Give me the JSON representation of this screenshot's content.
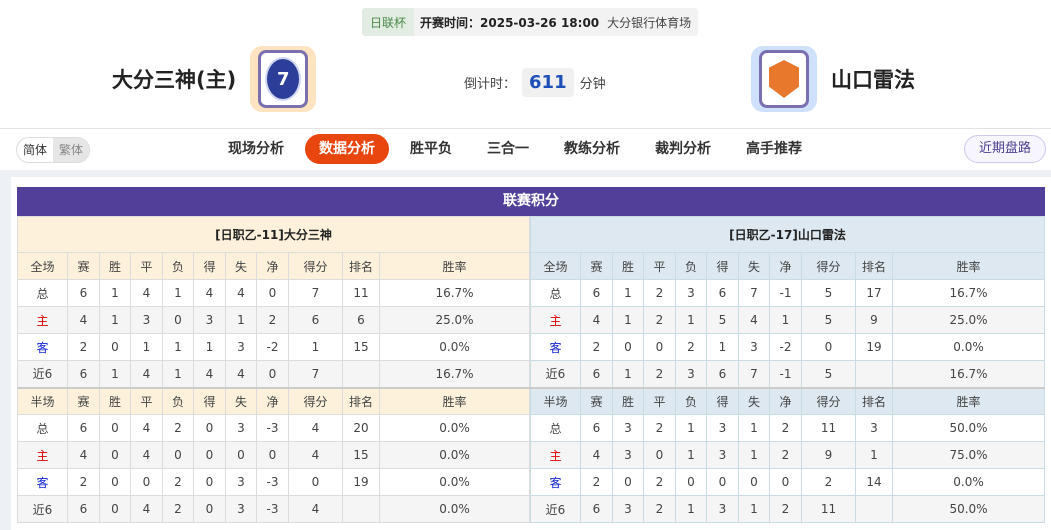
{
  "match": {
    "cup": "日联杯",
    "time": "开赛时间：2025-03-26 18:00",
    "venue": "大分银行体育场"
  },
  "home": {
    "name": "大分三神(主)",
    "logo_color": "#fde3bf"
  },
  "away": {
    "name": "山口雷法",
    "logo_color": "#cfe0fb"
  },
  "countdown": {
    "label": "倒计时：",
    "value": "611",
    "unit": "分钟"
  },
  "lang": [
    "简体",
    "繁体"
  ],
  "tabs": [
    {
      "label": "现场分析"
    },
    {
      "label": "数据分析",
      "active": true
    },
    {
      "label": "胜平负"
    },
    {
      "label": "三合一"
    },
    {
      "label": "教练分析"
    },
    {
      "label": "裁判分析"
    },
    {
      "label": "高手推荐"
    }
  ],
  "recent_button": "近期盘路",
  "section_title": "联赛积分",
  "accent": "#523f9a",
  "columns": [
    "赛",
    "胜",
    "平",
    "负",
    "得",
    "失",
    "净",
    "得分",
    "排名",
    "胜率"
  ],
  "tables": [
    {
      "title": "[日职乙-11]大分三神",
      "full": {
        "label": "全场",
        "rows": [
          [
            "总",
            "6",
            "1",
            "4",
            "1",
            "4",
            "4",
            "0",
            "7",
            "11",
            "16.7%"
          ],
          [
            "主",
            "4",
            "1",
            "3",
            "0",
            "3",
            "1",
            "2",
            "6",
            "6",
            "25.0%"
          ],
          [
            "客",
            "2",
            "0",
            "1",
            "1",
            "1",
            "3",
            "-2",
            "1",
            "15",
            "0.0%"
          ],
          [
            "近6",
            "6",
            "1",
            "4",
            "1",
            "4",
            "4",
            "0",
            "7",
            "",
            "16.7%"
          ]
        ]
      },
      "half": {
        "label": "半场",
        "rows": [
          [
            "总",
            "6",
            "0",
            "4",
            "2",
            "0",
            "3",
            "-3",
            "4",
            "20",
            "0.0%"
          ],
          [
            "主",
            "4",
            "0",
            "4",
            "0",
            "0",
            "0",
            "0",
            "4",
            "15",
            "0.0%"
          ],
          [
            "客",
            "2",
            "0",
            "0",
            "2",
            "0",
            "3",
            "-3",
            "0",
            "19",
            "0.0%"
          ],
          [
            "近6",
            "6",
            "0",
            "4",
            "2",
            "0",
            "3",
            "-3",
            "4",
            "",
            "0.0%"
          ]
        ]
      }
    },
    {
      "title": "[日职乙-17]山口雷法",
      "full": {
        "label": "全场",
        "rows": [
          [
            "总",
            "6",
            "1",
            "2",
            "3",
            "6",
            "7",
            "-1",
            "5",
            "17",
            "16.7%"
          ],
          [
            "主",
            "4",
            "1",
            "2",
            "1",
            "5",
            "4",
            "1",
            "5",
            "9",
            "25.0%"
          ],
          [
            "客",
            "2",
            "0",
            "0",
            "2",
            "1",
            "3",
            "-2",
            "0",
            "19",
            "0.0%"
          ],
          [
            "近6",
            "6",
            "1",
            "2",
            "3",
            "6",
            "7",
            "-1",
            "5",
            "",
            "16.7%"
          ]
        ]
      },
      "half": {
        "label": "半场",
        "rows": [
          [
            "总",
            "6",
            "3",
            "2",
            "1",
            "3",
            "1",
            "2",
            "11",
            "3",
            "50.0%"
          ],
          [
            "主",
            "4",
            "3",
            "0",
            "1",
            "3",
            "1",
            "2",
            "9",
            "1",
            "75.0%"
          ],
          [
            "客",
            "2",
            "0",
            "2",
            "0",
            "0",
            "0",
            "0",
            "2",
            "14",
            "0.0%"
          ],
          [
            "近6",
            "6",
            "3",
            "2",
            "1",
            "3",
            "1",
            "2",
            "11",
            "",
            "50.0%"
          ]
        ]
      }
    }
  ]
}
